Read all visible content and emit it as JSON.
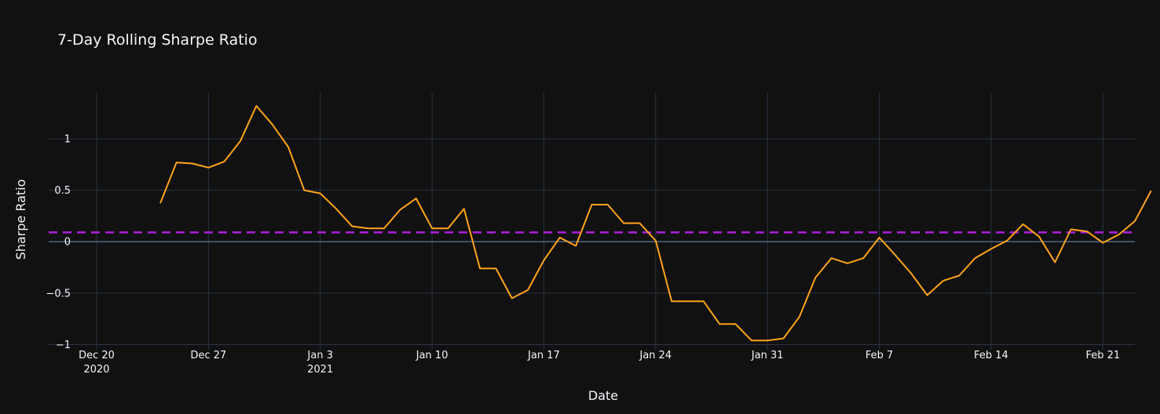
{
  "chart_data": {
    "type": "line",
    "title": "7-Day Rolling Sharpe Ratio",
    "xlabel": "Date",
    "ylabel": "Sharpe Ratio",
    "xlim": [
      "2020-12-17",
      "2021-02-23"
    ],
    "ylim": [
      -1.05,
      1.45
    ],
    "grid": true,
    "x_ticks": [
      {
        "date": "2020-12-20",
        "label": "Dec 20",
        "sublabel": "2020"
      },
      {
        "date": "2020-12-27",
        "label": "Dec 27",
        "sublabel": ""
      },
      {
        "date": "2021-01-03",
        "label": "Jan 3",
        "sublabel": "2021"
      },
      {
        "date": "2021-01-10",
        "label": "Jan 10",
        "sublabel": ""
      },
      {
        "date": "2021-01-17",
        "label": "Jan 17",
        "sublabel": ""
      },
      {
        "date": "2021-01-24",
        "label": "Jan 24",
        "sublabel": ""
      },
      {
        "date": "2021-01-31",
        "label": "Jan 31",
        "sublabel": ""
      },
      {
        "date": "2021-02-07",
        "label": "Feb 7",
        "sublabel": ""
      },
      {
        "date": "2021-02-14",
        "label": "Feb 14",
        "sublabel": ""
      },
      {
        "date": "2021-02-21",
        "label": "Feb 21",
        "sublabel": ""
      }
    ],
    "y_ticks": [
      {
        "value": 1,
        "label": "1"
      },
      {
        "value": 0.5,
        "label": "0.5"
      },
      {
        "value": 0,
        "label": "0"
      },
      {
        "value": -0.5,
        "label": "−0.5"
      },
      {
        "value": -1,
        "label": "−1"
      }
    ],
    "reference_line": {
      "value": 0.09,
      "color": "#b01ee0",
      "style": "dashed"
    },
    "series": [
      {
        "color": "#ffa31a",
        "x": [
          "2020-12-24",
          "2020-12-25",
          "2020-12-26",
          "2020-12-27",
          "2020-12-28",
          "2020-12-29",
          "2020-12-30",
          "2020-12-31",
          "2021-01-01",
          "2021-01-02",
          "2021-01-03",
          "2021-01-04",
          "2021-01-05",
          "2021-01-06",
          "2021-01-07",
          "2021-01-08",
          "2021-01-09",
          "2021-01-10",
          "2021-01-11",
          "2021-01-12",
          "2021-01-13",
          "2021-01-14",
          "2021-01-15",
          "2021-01-16",
          "2021-01-17",
          "2021-01-18",
          "2021-01-19",
          "2021-01-20",
          "2021-01-21",
          "2021-01-22",
          "2021-01-23",
          "2021-01-24",
          "2021-01-25",
          "2021-01-26",
          "2021-01-27",
          "2021-01-28",
          "2021-01-29",
          "2021-01-30",
          "2021-01-31",
          "2021-02-01",
          "2021-02-02",
          "2021-02-03",
          "2021-02-04",
          "2021-02-05",
          "2021-02-06",
          "2021-02-07",
          "2021-02-08",
          "2021-02-09",
          "2021-02-10",
          "2021-02-11",
          "2021-02-12",
          "2021-02-13",
          "2021-02-14",
          "2021-02-15",
          "2021-02-16",
          "2021-02-17",
          "2021-02-18",
          "2021-02-19",
          "2021-02-20",
          "2021-02-21",
          "2021-02-22",
          "2021-02-23",
          "2021-02-24"
        ],
        "y": [
          0.38,
          0.77,
          0.76,
          0.72,
          0.78,
          0.98,
          1.32,
          1.14,
          0.92,
          0.5,
          0.47,
          0.32,
          0.15,
          0.13,
          0.13,
          0.31,
          0.42,
          0.13,
          0.13,
          0.32,
          -0.26,
          -0.26,
          -0.55,
          -0.47,
          -0.18,
          0.04,
          -0.04,
          0.36,
          0.36,
          0.18,
          0.18,
          0.01,
          -0.58,
          -0.58,
          -0.58,
          -0.8,
          -0.8,
          -0.96,
          -0.96,
          -0.94,
          -0.73,
          -0.35,
          -0.16,
          -0.21,
          -0.16,
          0.04,
          -0.13,
          -0.31,
          -0.52,
          -0.38,
          -0.33,
          -0.16,
          -0.07,
          0.01,
          0.17,
          0.05,
          -0.2,
          0.12,
          0.1,
          -0.01,
          0.07,
          0.2,
          0.49
        ]
      }
    ]
  }
}
